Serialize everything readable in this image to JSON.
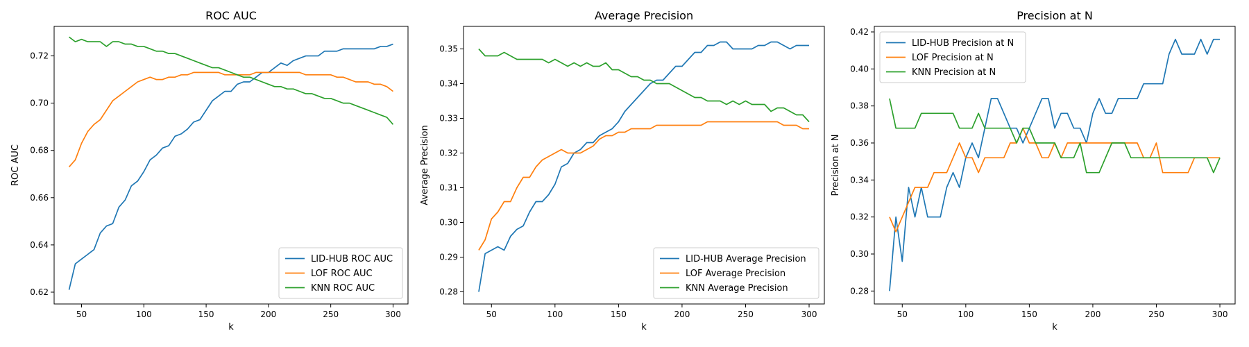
{
  "chart_data": [
    {
      "type": "line",
      "title": "ROC AUC",
      "xlabel": "k",
      "ylabel": "ROC AUC",
      "xlim": [
        28,
        312
      ],
      "ylim": [
        0.615,
        0.7325
      ],
      "xticks": [
        50,
        100,
        150,
        200,
        250,
        300
      ],
      "yticks": [
        0.62,
        0.64,
        0.66,
        0.68,
        0.7,
        0.72
      ],
      "ytick_labels": [
        "0.62",
        "0.64",
        "0.66",
        "0.68",
        "0.70",
        "0.72"
      ],
      "legend_position": "lower-right",
      "grid": false,
      "x": [
        40,
        45,
        50,
        55,
        60,
        65,
        70,
        75,
        80,
        85,
        90,
        95,
        100,
        105,
        110,
        115,
        120,
        125,
        130,
        135,
        140,
        145,
        150,
        155,
        160,
        165,
        170,
        175,
        180,
        185,
        190,
        195,
        200,
        205,
        210,
        215,
        220,
        225,
        230,
        235,
        240,
        245,
        250,
        255,
        260,
        265,
        270,
        275,
        280,
        285,
        290,
        295,
        300
      ],
      "series": [
        {
          "name": "LID-HUB ROC AUC",
          "color": "#1f77b4",
          "values": [
            0.621,
            0.632,
            0.634,
            0.636,
            0.638,
            0.645,
            0.648,
            0.649,
            0.656,
            0.659,
            0.665,
            0.667,
            0.671,
            0.676,
            0.678,
            0.681,
            0.682,
            0.686,
            0.687,
            0.689,
            0.692,
            0.693,
            0.697,
            0.701,
            0.703,
            0.705,
            0.705,
            0.708,
            0.709,
            0.709,
            0.711,
            0.713,
            0.713,
            0.715,
            0.717,
            0.716,
            0.718,
            0.719,
            0.72,
            0.72,
            0.72,
            0.722,
            0.722,
            0.722,
            0.723,
            0.723,
            0.723,
            0.723,
            0.723,
            0.723,
            0.724,
            0.724,
            0.725
          ]
        },
        {
          "name": "LOF ROC AUC",
          "color": "#ff7f0e",
          "values": [
            0.673,
            0.676,
            0.683,
            0.688,
            0.691,
            0.693,
            0.697,
            0.701,
            0.703,
            0.705,
            0.707,
            0.709,
            0.71,
            0.711,
            0.71,
            0.71,
            0.711,
            0.711,
            0.712,
            0.712,
            0.713,
            0.713,
            0.713,
            0.713,
            0.713,
            0.712,
            0.712,
            0.712,
            0.712,
            0.712,
            0.713,
            0.713,
            0.713,
            0.713,
            0.713,
            0.713,
            0.713,
            0.713,
            0.712,
            0.712,
            0.712,
            0.712,
            0.712,
            0.711,
            0.711,
            0.71,
            0.709,
            0.709,
            0.709,
            0.708,
            0.708,
            0.707,
            0.705
          ]
        },
        {
          "name": "KNN ROC AUC",
          "color": "#2ca02c",
          "values": [
            0.728,
            0.726,
            0.727,
            0.726,
            0.726,
            0.726,
            0.724,
            0.726,
            0.726,
            0.725,
            0.725,
            0.724,
            0.724,
            0.723,
            0.722,
            0.722,
            0.721,
            0.721,
            0.72,
            0.719,
            0.718,
            0.717,
            0.716,
            0.715,
            0.715,
            0.714,
            0.713,
            0.712,
            0.711,
            0.711,
            0.71,
            0.709,
            0.708,
            0.707,
            0.707,
            0.706,
            0.706,
            0.705,
            0.704,
            0.704,
            0.703,
            0.702,
            0.702,
            0.701,
            0.7,
            0.7,
            0.699,
            0.698,
            0.697,
            0.696,
            0.695,
            0.694,
            0.691
          ]
        }
      ]
    },
    {
      "type": "line",
      "title": "Average Precision",
      "xlabel": "k",
      "ylabel": "Average Precision",
      "xlim": [
        28,
        312
      ],
      "ylim": [
        0.2765,
        0.3565
      ],
      "xticks": [
        50,
        100,
        150,
        200,
        250,
        300
      ],
      "yticks": [
        0.28,
        0.29,
        0.3,
        0.31,
        0.32,
        0.33,
        0.34,
        0.35
      ],
      "ytick_labels": [
        "0.28",
        "0.29",
        "0.30",
        "0.31",
        "0.32",
        "0.33",
        "0.34",
        "0.35"
      ],
      "legend_position": "lower-right",
      "grid": false,
      "x": [
        40,
        45,
        50,
        55,
        60,
        65,
        70,
        75,
        80,
        85,
        90,
        95,
        100,
        105,
        110,
        115,
        120,
        125,
        130,
        135,
        140,
        145,
        150,
        155,
        160,
        165,
        170,
        175,
        180,
        185,
        190,
        195,
        200,
        205,
        210,
        215,
        220,
        225,
        230,
        235,
        240,
        245,
        250,
        255,
        260,
        265,
        270,
        275,
        280,
        285,
        290,
        295,
        300
      ],
      "series": [
        {
          "name": "LID-HUB Average Precision",
          "color": "#1f77b4",
          "values": [
            0.28,
            0.291,
            0.292,
            0.293,
            0.292,
            0.296,
            0.298,
            0.299,
            0.303,
            0.306,
            0.306,
            0.308,
            0.311,
            0.316,
            0.317,
            0.32,
            0.321,
            0.323,
            0.323,
            0.325,
            0.326,
            0.327,
            0.329,
            0.332,
            0.334,
            0.336,
            0.338,
            0.34,
            0.341,
            0.341,
            0.343,
            0.345,
            0.345,
            0.347,
            0.349,
            0.349,
            0.351,
            0.351,
            0.352,
            0.352,
            0.35,
            0.35,
            0.35,
            0.35,
            0.351,
            0.351,
            0.352,
            0.352,
            0.351,
            0.35,
            0.351,
            0.351,
            0.351
          ]
        },
        {
          "name": "LOF Average Precision",
          "color": "#ff7f0e",
          "values": [
            0.292,
            0.295,
            0.301,
            0.303,
            0.306,
            0.306,
            0.31,
            0.313,
            0.313,
            0.316,
            0.318,
            0.319,
            0.32,
            0.321,
            0.32,
            0.32,
            0.32,
            0.321,
            0.322,
            0.324,
            0.325,
            0.325,
            0.326,
            0.326,
            0.327,
            0.327,
            0.327,
            0.327,
            0.328,
            0.328,
            0.328,
            0.328,
            0.328,
            0.328,
            0.328,
            0.328,
            0.329,
            0.329,
            0.329,
            0.329,
            0.329,
            0.329,
            0.329,
            0.329,
            0.329,
            0.329,
            0.329,
            0.329,
            0.328,
            0.328,
            0.328,
            0.327,
            0.327
          ]
        },
        {
          "name": "KNN Average Precision",
          "color": "#2ca02c",
          "values": [
            0.35,
            0.348,
            0.348,
            0.348,
            0.349,
            0.348,
            0.347,
            0.347,
            0.347,
            0.347,
            0.347,
            0.346,
            0.347,
            0.346,
            0.345,
            0.346,
            0.345,
            0.346,
            0.345,
            0.345,
            0.346,
            0.344,
            0.344,
            0.343,
            0.342,
            0.342,
            0.341,
            0.341,
            0.34,
            0.34,
            0.34,
            0.339,
            0.338,
            0.337,
            0.336,
            0.336,
            0.335,
            0.335,
            0.335,
            0.334,
            0.335,
            0.334,
            0.335,
            0.334,
            0.334,
            0.334,
            0.332,
            0.333,
            0.333,
            0.332,
            0.331,
            0.331,
            0.329
          ]
        }
      ]
    },
    {
      "type": "line",
      "title": "Precision at N",
      "xlabel": "k",
      "ylabel": "Precision at N",
      "xlim": [
        28,
        312
      ],
      "ylim": [
        0.273,
        0.423
      ],
      "xticks": [
        50,
        100,
        150,
        200,
        250,
        300
      ],
      "yticks": [
        0.28,
        0.3,
        0.32,
        0.34,
        0.36,
        0.38,
        0.4,
        0.42
      ],
      "ytick_labels": [
        "0.28",
        "0.30",
        "0.32",
        "0.34",
        "0.36",
        "0.38",
        "0.40",
        "0.42"
      ],
      "legend_position": "upper-left",
      "grid": false,
      "x": [
        40,
        45,
        50,
        55,
        60,
        65,
        70,
        75,
        80,
        85,
        90,
        95,
        100,
        105,
        110,
        115,
        120,
        125,
        130,
        135,
        140,
        145,
        150,
        155,
        160,
        165,
        170,
        175,
        180,
        185,
        190,
        195,
        200,
        205,
        210,
        215,
        220,
        225,
        230,
        235,
        240,
        245,
        250,
        255,
        260,
        265,
        270,
        275,
        280,
        285,
        290,
        295,
        300
      ],
      "series": [
        {
          "name": "LID-HUB Precision at N",
          "color": "#1f77b4",
          "values": [
            0.28,
            0.32,
            0.296,
            0.336,
            0.32,
            0.336,
            0.32,
            0.32,
            0.32,
            0.336,
            0.344,
            0.336,
            0.352,
            0.36,
            0.352,
            0.368,
            0.384,
            0.384,
            0.376,
            0.368,
            0.368,
            0.36,
            0.368,
            0.376,
            0.384,
            0.384,
            0.368,
            0.376,
            0.376,
            0.368,
            0.368,
            0.36,
            0.376,
            0.384,
            0.376,
            0.376,
            0.384,
            0.384,
            0.384,
            0.384,
            0.392,
            0.392,
            0.392,
            0.392,
            0.408,
            0.416,
            0.408,
            0.408,
            0.408,
            0.416,
            0.408,
            0.416,
            0.416
          ]
        },
        {
          "name": "LOF Precision at N",
          "color": "#ff7f0e",
          "values": [
            0.32,
            0.312,
            0.32,
            0.328,
            0.336,
            0.336,
            0.336,
            0.344,
            0.344,
            0.344,
            0.352,
            0.36,
            0.352,
            0.352,
            0.344,
            0.352,
            0.352,
            0.352,
            0.352,
            0.36,
            0.36,
            0.368,
            0.36,
            0.36,
            0.352,
            0.352,
            0.36,
            0.352,
            0.36,
            0.36,
            0.36,
            0.36,
            0.36,
            0.36,
            0.36,
            0.36,
            0.36,
            0.36,
            0.36,
            0.36,
            0.352,
            0.352,
            0.36,
            0.344,
            0.344,
            0.344,
            0.344,
            0.344,
            0.352,
            0.352,
            0.352,
            0.352,
            0.352
          ]
        },
        {
          "name": "KNN Precision at N",
          "color": "#2ca02c",
          "values": [
            0.384,
            0.368,
            0.368,
            0.368,
            0.368,
            0.376,
            0.376,
            0.376,
            0.376,
            0.376,
            0.376,
            0.368,
            0.368,
            0.368,
            0.376,
            0.368,
            0.368,
            0.368,
            0.368,
            0.368,
            0.36,
            0.368,
            0.368,
            0.36,
            0.36,
            0.36,
            0.36,
            0.352,
            0.352,
            0.352,
            0.36,
            0.344,
            0.344,
            0.344,
            0.352,
            0.36,
            0.36,
            0.36,
            0.352,
            0.352,
            0.352,
            0.352,
            0.352,
            0.352,
            0.352,
            0.352,
            0.352,
            0.352,
            0.352,
            0.352,
            0.352,
            0.344,
            0.352
          ]
        }
      ]
    }
  ]
}
